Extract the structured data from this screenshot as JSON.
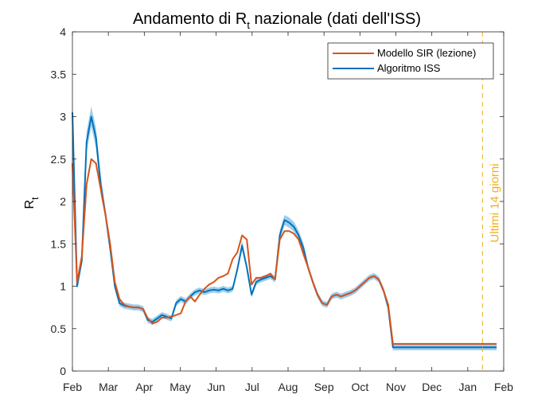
{
  "chart_data": {
    "type": "line",
    "title_main": "Andamento di R",
    "title_sub": "t",
    "title_rest": " nazionale (dati dell'ISS)",
    "ylabel_main": "R",
    "ylabel_sub": "t",
    "xlabel": "",
    "x_ticks": [
      "Feb",
      "Mar",
      "Apr",
      "May",
      "Jun",
      "Jul",
      "Aug",
      "Sep",
      "Oct",
      "Nov",
      "Dec",
      "Jan",
      "Feb"
    ],
    "y_ticks": [
      "0",
      "0.5",
      "1",
      "1.5",
      "2",
      "2.5",
      "3",
      "3.5",
      "4"
    ],
    "ylim": [
      0,
      4
    ],
    "xlim_days": [
      0,
      366
    ],
    "grid": false,
    "legend_position": "top-right",
    "annotation": {
      "text": "Ultimi 14 giorni",
      "x_day": 348,
      "color": "#EDB120"
    },
    "series": [
      {
        "name": "Modello SIR (lezione)",
        "color": "#D95319",
        "x": [
          0,
          4,
          8,
          12,
          16,
          20,
          24,
          28,
          32,
          36,
          40,
          44,
          48,
          52,
          56,
          60,
          64,
          68,
          72,
          76,
          80,
          84,
          88,
          92,
          96,
          100,
          104,
          108,
          112,
          116,
          120,
          124,
          128,
          132,
          136,
          140,
          144,
          148,
          152,
          156,
          160,
          164,
          168,
          172,
          176,
          180,
          184,
          188,
          192,
          196,
          200,
          204,
          208,
          212,
          216,
          220,
          224,
          228,
          232,
          236,
          240,
          244,
          248,
          252,
          256,
          260,
          264,
          268,
          272,
          276,
          280,
          284,
          288,
          292,
          296,
          300,
          304,
          308,
          312,
          316,
          320,
          324,
          328,
          332,
          336,
          340,
          344,
          348,
          352,
          356,
          360
        ],
        "y": [
          2.45,
          1.05,
          1.35,
          2.2,
          2.5,
          2.45,
          2.15,
          1.85,
          1.5,
          1.05,
          0.85,
          0.78,
          0.76,
          0.75,
          0.75,
          0.73,
          0.62,
          0.56,
          0.58,
          0.63,
          0.63,
          0.64,
          0.66,
          0.68,
          0.82,
          0.88,
          0.82,
          0.9,
          0.97,
          1.02,
          1.05,
          1.1,
          1.12,
          1.15,
          1.32,
          1.4,
          1.6,
          1.55,
          1.02,
          1.1,
          1.1,
          1.12,
          1.15,
          1.08,
          1.55,
          1.65,
          1.65,
          1.62,
          1.55,
          1.38,
          1.22,
          1.05,
          0.9,
          0.8,
          0.78,
          0.88,
          0.9,
          0.88,
          0.9,
          0.92,
          0.95,
          1.0,
          1.05,
          1.1,
          1.12,
          1.08,
          0.95,
          0.78,
          0.32,
          0.32,
          0.32,
          0.32,
          0.32,
          0.32,
          0.32,
          0.32,
          0.32,
          0.32,
          0.32,
          0.32,
          0.32,
          0.32,
          0.32,
          0.32,
          0.32,
          0.32,
          0.32,
          0.32,
          0.32,
          0.32,
          0.32
        ]
      },
      {
        "name": "Algoritmo ISS",
        "color": "#0072BD",
        "x": [
          0,
          4,
          8,
          12,
          16,
          20,
          24,
          28,
          32,
          36,
          40,
          44,
          48,
          52,
          56,
          60,
          64,
          68,
          72,
          76,
          80,
          84,
          88,
          92,
          96,
          100,
          104,
          108,
          112,
          116,
          120,
          124,
          128,
          132,
          136,
          140,
          144,
          148,
          152,
          156,
          160,
          164,
          168,
          172,
          176,
          180,
          184,
          188,
          192,
          196,
          200,
          204,
          208,
          212,
          216,
          220,
          224,
          228,
          232,
          236,
          240,
          244,
          248,
          252,
          256,
          260,
          264,
          268,
          272,
          276,
          280,
          284,
          288,
          292,
          296,
          300,
          304,
          308,
          312,
          316,
          320,
          324,
          328,
          332,
          336,
          340,
          344,
          348,
          352,
          356,
          360
        ],
        "y": [
          3.05,
          1.0,
          1.3,
          2.7,
          3.0,
          2.75,
          2.2,
          1.85,
          1.45,
          1.0,
          0.8,
          0.77,
          0.76,
          0.75,
          0.75,
          0.73,
          0.6,
          0.58,
          0.62,
          0.66,
          0.64,
          0.62,
          0.8,
          0.85,
          0.82,
          0.88,
          0.93,
          0.95,
          0.93,
          0.95,
          0.96,
          0.95,
          0.97,
          0.95,
          0.97,
          1.2,
          1.48,
          1.22,
          0.9,
          1.05,
          1.08,
          1.1,
          1.12,
          1.08,
          1.6,
          1.78,
          1.75,
          1.7,
          1.6,
          1.45,
          1.22,
          1.05,
          0.9,
          0.8,
          0.78,
          0.88,
          0.9,
          0.88,
          0.9,
          0.92,
          0.95,
          1.0,
          1.05,
          1.1,
          1.12,
          1.08,
          0.95,
          0.75,
          0.28,
          0.28,
          0.28,
          0.28,
          0.28,
          0.28,
          0.28,
          0.28,
          0.28,
          0.28,
          0.28,
          0.28,
          0.28,
          0.28,
          0.28,
          0.28,
          0.28,
          0.28,
          0.28,
          0.28,
          0.28,
          0.28,
          0.28
        ]
      }
    ]
  }
}
